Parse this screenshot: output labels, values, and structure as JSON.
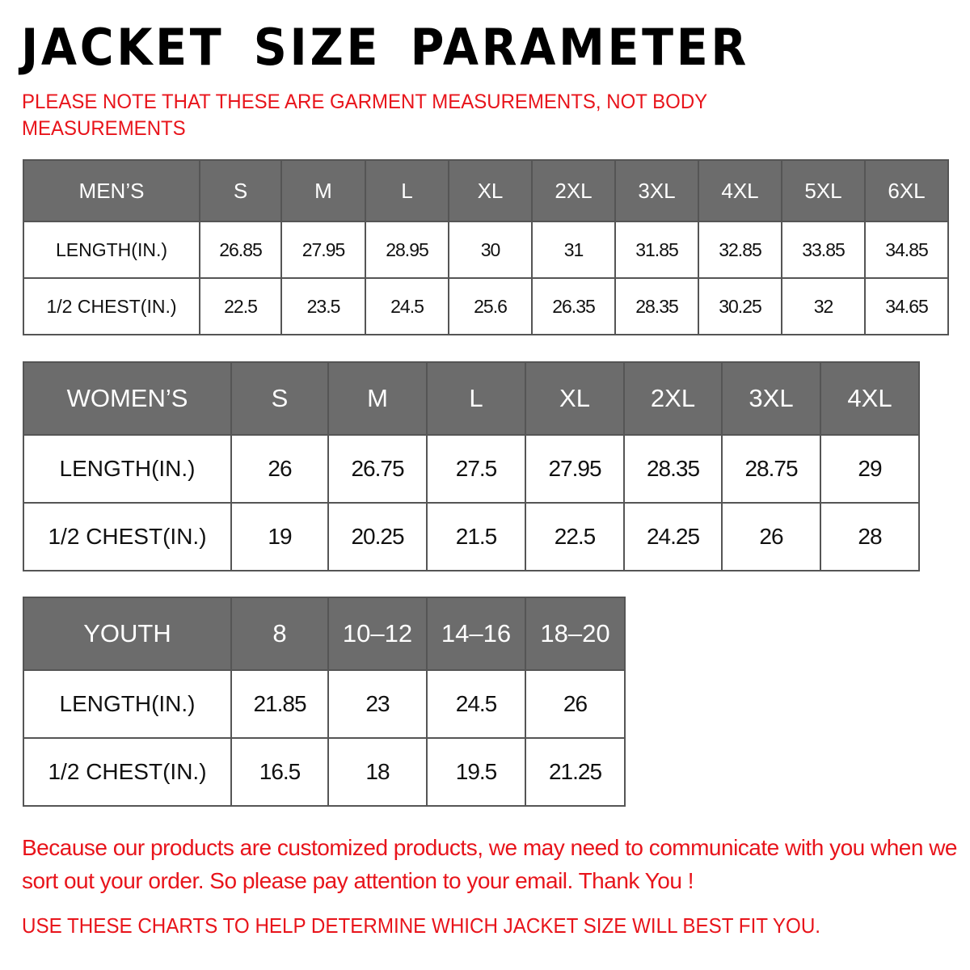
{
  "title": "JACKET SIZE PARAMETER",
  "note": "PLEASE NOTE THAT THESE ARE GARMENT MEASUREMENTS, NOT BODY MEASUREMENTS",
  "colors": {
    "header_bg": "#6c6c6c",
    "red_text": "#e8141b"
  },
  "tables": {
    "men": {
      "header": [
        "MEN’S",
        "S",
        "M",
        "L",
        "XL",
        "2XL",
        "3XL",
        "4XL",
        "5XL",
        "6XL"
      ],
      "rows": [
        [
          "LENGTH(IN.)",
          "26.85",
          "27.95",
          "28.95",
          "30",
          "31",
          "31.85",
          "32.85",
          "33.85",
          "34.85"
        ],
        [
          "1/2 CHEST(IN.)",
          "22.5",
          "23.5",
          "24.5",
          "25.6",
          "26.35",
          "28.35",
          "30.25",
          "32",
          "34.65"
        ]
      ]
    },
    "women": {
      "header": [
        "WOMEN’S",
        "S",
        "M",
        "L",
        "XL",
        "2XL",
        "3XL",
        "4XL"
      ],
      "rows": [
        [
          "LENGTH(IN.)",
          "26",
          "26.75",
          "27.5",
          "27.95",
          "28.35",
          "28.75",
          "29"
        ],
        [
          "1/2 CHEST(IN.)",
          "19",
          "20.25",
          "21.5",
          "22.5",
          "24.25",
          "26",
          "28"
        ]
      ]
    },
    "youth": {
      "header": [
        "YOUTH",
        "8",
        "10–12",
        "14–16",
        "18–20"
      ],
      "rows": [
        [
          "LENGTH(IN.)",
          "21.85",
          "23",
          "24.5",
          "26"
        ],
        [
          "1/2 CHEST(IN.)",
          "16.5",
          "18",
          "19.5",
          "21.25"
        ]
      ]
    }
  },
  "footer": {
    "message": "Because our products are customized products, we may need to communicate with you when we sort out your order. So please pay attention to your email. Thank You !",
    "instruction": "USE THESE CHARTS TO HELP DETERMINE WHICH JACKET SIZE WILL BEST FIT YOU."
  }
}
